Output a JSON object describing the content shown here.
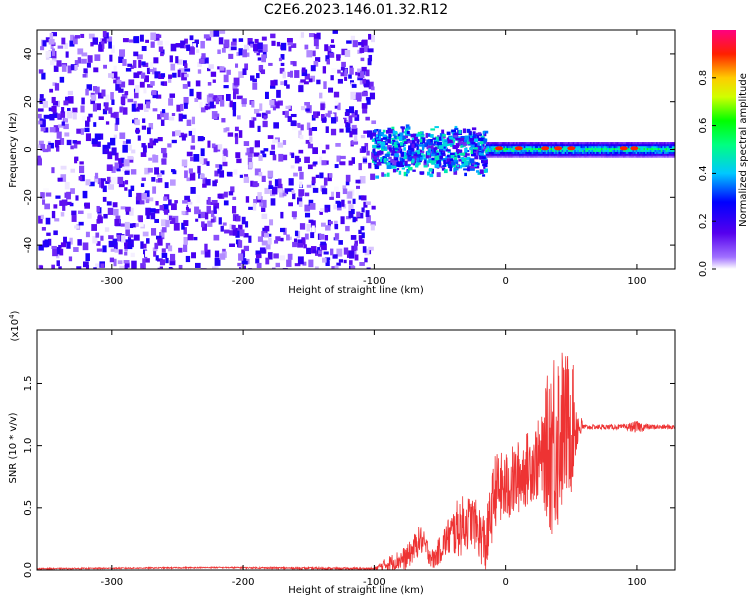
{
  "title": "C2E6.2023.146.01.32.R12",
  "chart_data": [
    {
      "type": "heatmap",
      "xlabel": "Height of straight line (km)",
      "ylabel": "Frequency (Hz)",
      "xlim": [
        -357,
        129
      ],
      "ylim": [
        -50,
        50
      ],
      "xticks": [
        -300,
        -200,
        -100,
        0,
        100
      ],
      "yticks": [
        -40,
        -20,
        0,
        20,
        40
      ],
      "colorbar": {
        "label": "Normalized spectral amplitude",
        "range": [
          0,
          1
        ],
        "ticks": [
          "0.0",
          "0.2",
          "0.4",
          "0.6",
          "0.8"
        ],
        "colormap": "rainbow (purple-blue-cyan-green-yellow-red-magenta)"
      },
      "regions": [
        {
          "x_range": [
            -357,
            -102
          ],
          "description": "broadband noise across all frequencies",
          "amplitude": [
            0.0,
            0.25
          ]
        },
        {
          "x_range": [
            -102,
            -15
          ],
          "center_freq": 0,
          "half_width_hz": 8,
          "amplitude": [
            0.1,
            0.5
          ]
        },
        {
          "x_range": [
            -15,
            129
          ],
          "center_freq": 0.5,
          "half_width_hz": 3,
          "amplitude": [
            0.4,
            0.9
          ]
        }
      ],
      "hotspots_x": [
        -5,
        10,
        30,
        40,
        50,
        90,
        98
      ]
    },
    {
      "type": "line",
      "xlabel": "Height of straight line (km)",
      "ylabel": "SNR (10 * v/v)",
      "multiplier_label": "(x10",
      "multiplier_exp": "4",
      "multiplier_close": ")",
      "xlim": [
        -357,
        129
      ],
      "ylim": [
        0,
        1.93
      ],
      "xticks": [
        -300,
        -200,
        -100,
        0,
        100
      ],
      "yticks": [
        "0.0",
        "0.5",
        "1.0",
        "1.5"
      ],
      "color": "#ee3333",
      "series": [
        {
          "x": [
            -357,
            -220,
            -100,
            -90,
            -75,
            -65,
            -55,
            -45,
            -35,
            -25,
            -15,
            -8,
            0,
            10,
            20,
            28,
            35,
            40,
            45,
            50,
            55,
            60,
            70,
            80,
            90,
            100,
            110,
            120,
            129
          ],
          "base": [
            0.01,
            0.02,
            0.01,
            0.05,
            0.1,
            0.25,
            0.08,
            0.25,
            0.35,
            0.4,
            0.2,
            0.65,
            0.65,
            0.75,
            0.85,
            0.9,
            1.05,
            1.1,
            1.15,
            1.2,
            1.15,
            1.15,
            1.15,
            1.15,
            1.15,
            1.15,
            1.15,
            1.15,
            1.15
          ],
          "amp": [
            0.005,
            0.005,
            0.01,
            0.06,
            0.1,
            0.12,
            0.08,
            0.15,
            0.25,
            0.2,
            0.25,
            0.3,
            0.3,
            0.3,
            0.3,
            0.35,
            0.8,
            0.8,
            0.6,
            0.6,
            0.15,
            0.02,
            0.02,
            0.02,
            0.02,
            0.05,
            0.02,
            0.02,
            0.02
          ]
        }
      ]
    }
  ]
}
